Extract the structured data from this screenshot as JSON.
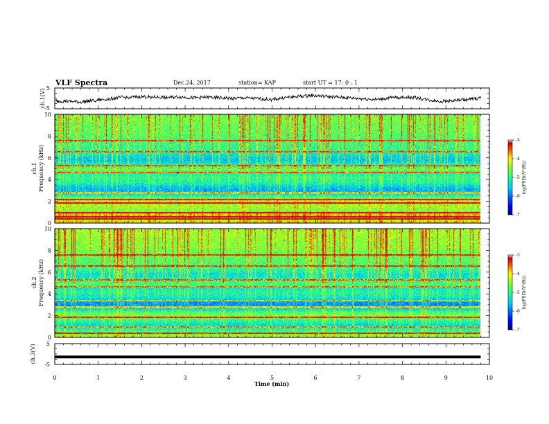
{
  "header": {
    "title": "VLF Spectra",
    "date": "Dec.24, 2017",
    "station": "station= KAP",
    "start": "start  UT =   17: 0  : 1"
  },
  "chart_data": [
    {
      "type": "line",
      "name": "ch1-waveform",
      "ylabel": "ch.1(V)",
      "ylim": [
        -5,
        5
      ],
      "yticks": [
        "5",
        "-5"
      ],
      "xlim": [
        0,
        10
      ],
      "x_end": 9.8,
      "trend": [
        [
          0.0,
          -1.2
        ],
        [
          0.3,
          -1.4
        ],
        [
          0.6,
          -1.8
        ],
        [
          0.9,
          -1.0
        ],
        [
          1.2,
          -0.4
        ],
        [
          1.5,
          0.4
        ],
        [
          1.8,
          0.6
        ],
        [
          2.0,
          0.8
        ],
        [
          2.3,
          0.6
        ],
        [
          2.6,
          0.5
        ],
        [
          2.9,
          0.7
        ],
        [
          3.2,
          0.2
        ],
        [
          3.5,
          0.6
        ],
        [
          3.8,
          0.3
        ],
        [
          4.1,
          0.0
        ],
        [
          4.4,
          0.2
        ],
        [
          4.7,
          -0.2
        ],
        [
          5.0,
          -0.6
        ],
        [
          5.3,
          0.4
        ],
        [
          5.6,
          0.9
        ],
        [
          5.9,
          1.4
        ],
        [
          6.2,
          1.0
        ],
        [
          6.5,
          0.6
        ],
        [
          6.8,
          0.2
        ],
        [
          7.1,
          -0.2
        ],
        [
          7.4,
          -0.6
        ],
        [
          7.7,
          0.2
        ],
        [
          8.0,
          0.6
        ],
        [
          8.3,
          0.4
        ],
        [
          8.6,
          -0.8
        ],
        [
          8.9,
          -1.4
        ],
        [
          9.2,
          -1.0
        ],
        [
          9.5,
          -0.6
        ],
        [
          9.8,
          0.2
        ]
      ]
    },
    {
      "type": "heatmap",
      "name": "ch1-spectrogram",
      "ylabel": "ch.1",
      "ylabel2": "Frequency  (kHz)",
      "ylim": [
        0,
        10
      ],
      "yticks": [
        "0",
        "2",
        "4",
        "6",
        "8",
        "10"
      ],
      "xlim": [
        0,
        10
      ],
      "x_end": 9.8,
      "colorbar": {
        "label": "log(PSD)(V²/Hz)",
        "range": [
          -7,
          -3
        ],
        "ticks": [
          "-3",
          "-4",
          "-5",
          "-6",
          "-7"
        ]
      },
      "profile": [
        [
          0.0,
          -4.0
        ],
        [
          0.3,
          -4.2
        ],
        [
          0.8,
          -3.9
        ],
        [
          1.2,
          -4.6
        ],
        [
          1.6,
          -4.4
        ],
        [
          2.0,
          -4.3
        ],
        [
          2.3,
          -4.7
        ],
        [
          2.7,
          -5.5
        ],
        [
          3.0,
          -5.7
        ],
        [
          3.3,
          -5.6
        ],
        [
          3.7,
          -5.2
        ],
        [
          4.2,
          -5.0
        ],
        [
          4.6,
          -5.2
        ],
        [
          5.0,
          -4.6
        ],
        [
          5.4,
          -5.2
        ],
        [
          5.8,
          -5.6
        ],
        [
          6.2,
          -5.4
        ],
        [
          6.6,
          -5.1
        ],
        [
          7.0,
          -5.0
        ],
        [
          7.5,
          -4.9
        ],
        [
          8.0,
          -4.8
        ],
        [
          8.5,
          -4.7
        ],
        [
          9.0,
          -4.7
        ],
        [
          9.5,
          -4.6
        ],
        [
          10.0,
          -4.6
        ]
      ],
      "lines_khz": [
        0.4,
        0.6,
        1.0,
        1.9,
        2.2,
        2.8,
        4.7,
        5.3,
        6.6,
        7.6
      ]
    },
    {
      "type": "heatmap",
      "name": "ch2-spectrogram",
      "ylabel": "ch.2",
      "ylabel2": "Frequency  (kHz)",
      "ylim": [
        0,
        10
      ],
      "yticks": [
        "0",
        "2",
        "4",
        "6",
        "8",
        "10"
      ],
      "xlim": [
        0,
        10
      ],
      "x_end": 9.8,
      "colorbar": {
        "label": "log(PSD)(V²/Hz)",
        "range": [
          -7,
          -3
        ],
        "ticks": [
          "-3",
          "-4",
          "-5",
          "-6",
          "-7"
        ]
      },
      "profile": [
        [
          0.0,
          -4.3
        ],
        [
          0.3,
          -4.6
        ],
        [
          0.8,
          -5.2
        ],
        [
          1.2,
          -5.4
        ],
        [
          1.6,
          -5.0
        ],
        [
          2.0,
          -4.6
        ],
        [
          2.3,
          -4.8
        ],
        [
          2.7,
          -5.6
        ],
        [
          3.0,
          -5.9
        ],
        [
          3.3,
          -5.8
        ],
        [
          3.7,
          -5.3
        ],
        [
          4.2,
          -5.1
        ],
        [
          4.6,
          -5.3
        ],
        [
          5.0,
          -4.8
        ],
        [
          5.4,
          -5.2
        ],
        [
          5.8,
          -5.4
        ],
        [
          6.2,
          -5.1
        ],
        [
          6.6,
          -4.9
        ],
        [
          7.0,
          -4.8
        ],
        [
          7.5,
          -4.7
        ],
        [
          8.0,
          -4.6
        ],
        [
          8.5,
          -4.5
        ],
        [
          9.0,
          -4.5
        ],
        [
          9.5,
          -4.4
        ],
        [
          10.0,
          -4.4
        ]
      ],
      "lines_khz": [
        0.4,
        1.0,
        1.9,
        2.8,
        3.4,
        4.7,
        5.3,
        6.6,
        7.6
      ]
    },
    {
      "type": "line",
      "name": "ch3-waveform",
      "ylabel": "ch.3(V)",
      "ylim": [
        -5,
        5
      ],
      "yticks": [
        "5",
        "-5"
      ],
      "xlim": [
        0,
        10
      ],
      "x_end": 9.8,
      "xlabel": "Time  (min)",
      "xticks": [
        "0",
        "1",
        "2",
        "3",
        "4",
        "5",
        "6",
        "7",
        "8",
        "9",
        "10"
      ],
      "trend": [
        [
          0.0,
          -1.4
        ],
        [
          9.8,
          -1.4
        ]
      ]
    }
  ]
}
